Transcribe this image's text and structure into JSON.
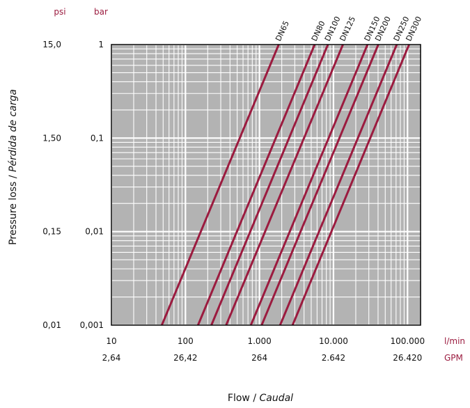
{
  "chart_data": {
    "type": "line",
    "title": "",
    "xlabel": {
      "main": "Flow / ",
      "italic": "Caudal"
    },
    "ylabel": {
      "main": "Pressure loss / ",
      "italic": "Pérdida de carga"
    },
    "x_scale": "log",
    "y_scale": "log",
    "xlim": [
      10,
      150000
    ],
    "ylim": [
      0.001,
      1
    ],
    "grid": true,
    "x_units": [
      "l/min",
      "GPM"
    ],
    "y_units": [
      "psi",
      "bar"
    ],
    "x_ticks": [
      {
        "value": 10,
        "lmin": "10",
        "gpm": "2,64"
      },
      {
        "value": 100,
        "lmin": "100",
        "gpm": "26,42"
      },
      {
        "value": 1000,
        "lmin": "1.000",
        "gpm": "264"
      },
      {
        "value": 10000,
        "lmin": "10.000",
        "gpm": "2.642"
      },
      {
        "value": 100000,
        "lmin": "100.000",
        "gpm": "26.420"
      }
    ],
    "y_ticks": [
      {
        "value": 1,
        "bar": "1",
        "psi": "15,0"
      },
      {
        "value": 0.1,
        "bar": "0,1",
        "psi": "1,50"
      },
      {
        "value": 0.01,
        "bar": "0,01",
        "psi": "0,15"
      },
      {
        "value": 0.001,
        "bar": "0,001",
        "psi": "0,01"
      }
    ],
    "line_color": "#9b1b3f",
    "series": [
      {
        "name": "DN65",
        "x": [
          48,
          1820
        ],
        "y": [
          0.001,
          1
        ]
      },
      {
        "name": "DN80",
        "x": [
          148,
          5560
        ],
        "y": [
          0.001,
          1
        ]
      },
      {
        "name": "DN100",
        "x": [
          224,
          8400
        ],
        "y": [
          0.001,
          1
        ]
      },
      {
        "name": "DN125",
        "x": [
          355,
          13400
        ],
        "y": [
          0.001,
          1
        ]
      },
      {
        "name": "DN150",
        "x": [
          765,
          28800
        ],
        "y": [
          0.001,
          1
        ]
      },
      {
        "name": "DN200",
        "x": [
          1070,
          40300
        ],
        "y": [
          0.001,
          1
        ]
      },
      {
        "name": "DN250",
        "x": [
          1900,
          71500
        ],
        "y": [
          0.001,
          1
        ]
      },
      {
        "name": "DN300",
        "x": [
          2800,
          105000
        ],
        "y": [
          0.001,
          1
        ]
      }
    ]
  }
}
